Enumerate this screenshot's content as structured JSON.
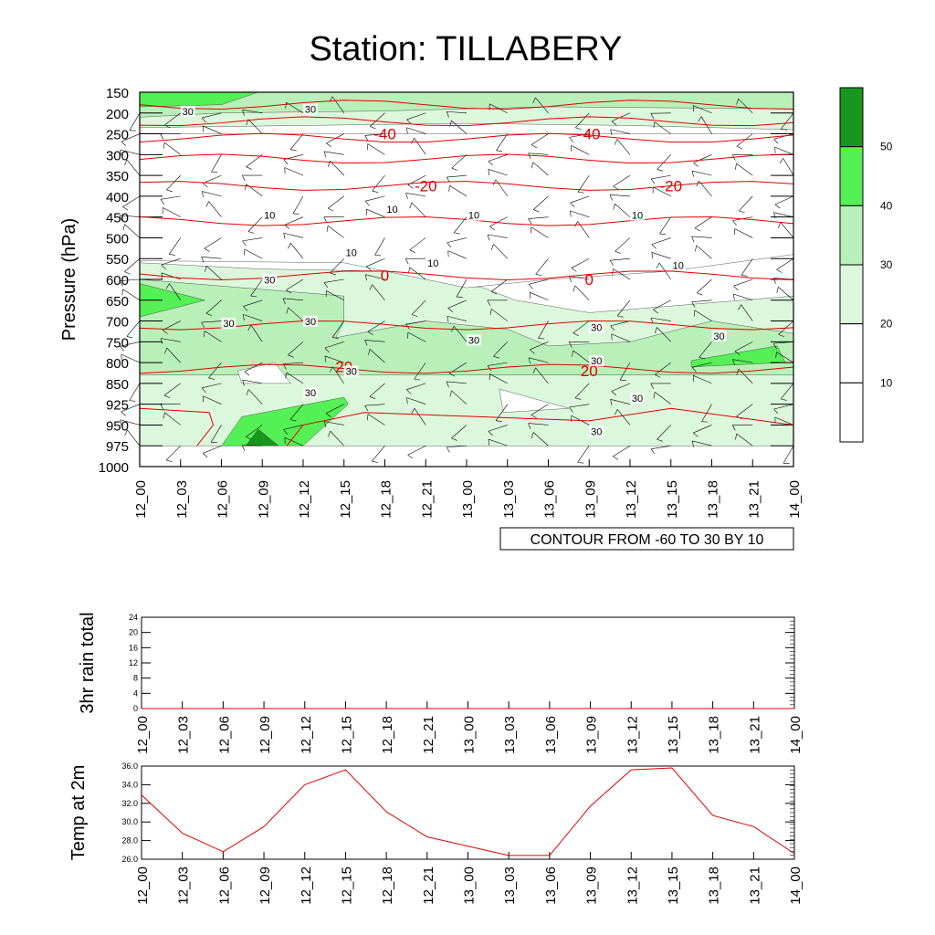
{
  "colors": {
    "axis": "#000000",
    "temp_line": "#e00000",
    "rh_levels": [
      "#ffffff",
      "#ffffff",
      "#dcf8dc",
      "#b9f0b9",
      "#55f055",
      "#19961e"
    ],
    "contour": "#000000",
    "barb": "#000000"
  },
  "chart_data": [
    {
      "type": "heatmap",
      "title": "Station: TILLABERY",
      "ylabel": "Pressure (hPa)",
      "xlabel": "",
      "time_ticks": [
        "12_00",
        "12_03",
        "12_06",
        "12_09",
        "12_12",
        "12_15",
        "12_18",
        "12_21",
        "13_00",
        "13_03",
        "13_06",
        "13_09",
        "13_12",
        "13_15",
        "13_18",
        "13_21",
        "14_00"
      ],
      "pressure_ticks": [
        "150",
        "200",
        "250",
        "300",
        "350",
        "400",
        "450",
        "500",
        "550",
        "600",
        "650",
        "700",
        "750",
        "800",
        "850",
        "925",
        "950",
        "975",
        "1000"
      ],
      "info_label": "CONTOUR FROM -60 TO 30 BY 10",
      "colorbar": {
        "levels": [
          "10",
          "20",
          "30",
          "40",
          "50"
        ],
        "boundaries": [
          0,
          10,
          20,
          30,
          40,
          50,
          60
        ]
      },
      "temperature_contour_labels": [
        {
          "text": "-40",
          "time": "12_18",
          "pressure": 250
        },
        {
          "text": "-40",
          "time": "13_09",
          "pressure": 250
        },
        {
          "text": "-20",
          "time": "12_21",
          "pressure": 375
        },
        {
          "text": "-20",
          "time": "13_15",
          "pressure": 375
        },
        {
          "text": "0",
          "time": "12_18",
          "pressure": 590
        },
        {
          "text": "0",
          "time": "13_09",
          "pressure": 600
        },
        {
          "text": "20",
          "time": "12_15",
          "pressure": 810
        },
        {
          "text": "20",
          "time": "13_09",
          "pressure": 820
        }
      ],
      "rh_contour_labels": [
        {
          "text": "30",
          "time": "12_03",
          "pressure": 200
        },
        {
          "text": "30",
          "time": "12_12",
          "pressure": 195
        },
        {
          "text": "10",
          "time": "12_09",
          "pressure": 450
        },
        {
          "text": "10",
          "time": "12_18",
          "pressure": 435
        },
        {
          "text": "10",
          "time": "13_00",
          "pressure": 450
        },
        {
          "text": "10",
          "time": "13_12",
          "pressure": 450
        },
        {
          "text": "10",
          "time": "12_15",
          "pressure": 540
        },
        {
          "text": "10",
          "time": "12_21",
          "pressure": 565
        },
        {
          "text": "10",
          "time": "13_15",
          "pressure": 570
        },
        {
          "text": "30",
          "time": "12_09",
          "pressure": 605
        },
        {
          "text": "30",
          "time": "12_06",
          "pressure": 710
        },
        {
          "text": "30",
          "time": "12_12",
          "pressure": 705
        },
        {
          "text": "30",
          "time": "13_09",
          "pressure": 720
        },
        {
          "text": "30",
          "time": "13_18",
          "pressure": 740
        },
        {
          "text": "30",
          "time": "13_00",
          "pressure": 750
        },
        {
          "text": "30",
          "time": "12_15",
          "pressure": 825
        },
        {
          "text": "30",
          "time": "13_09",
          "pressure": 800
        },
        {
          "text": "30",
          "time": "12_12",
          "pressure": 890
        },
        {
          "text": "30",
          "time": "13_12",
          "pressure": 910
        },
        {
          "text": "30",
          "time": "13_09",
          "pressure": 960
        }
      ]
    },
    {
      "type": "line",
      "ylabel": "3hr rain total",
      "x": [
        "12_00",
        "12_03",
        "12_06",
        "12_09",
        "12_12",
        "12_15",
        "12_18",
        "12_21",
        "13_00",
        "13_03",
        "13_06",
        "13_09",
        "13_12",
        "13_15",
        "13_18",
        "13_21",
        "14_00"
      ],
      "y_ticks": [
        "0",
        "4",
        "8",
        "12",
        "16",
        "20",
        "24"
      ],
      "ylim": [
        0,
        24
      ],
      "values": [
        0,
        0,
        0,
        0,
        0,
        0,
        0,
        0,
        0,
        0,
        0,
        0,
        0,
        0,
        0,
        0,
        0
      ]
    },
    {
      "type": "line",
      "ylabel": "Temp at 2m",
      "x": [
        "12_00",
        "12_03",
        "12_06",
        "12_09",
        "12_12",
        "12_15",
        "12_18",
        "12_21",
        "13_00",
        "13_03",
        "13_06",
        "13_09",
        "13_12",
        "13_15",
        "13_18",
        "13_21",
        "14_00"
      ],
      "y_ticks": [
        "26.0",
        "28.0",
        "30.0",
        "32.0",
        "34.0",
        "36.0"
      ],
      "ylim": [
        26,
        36
      ],
      "values": [
        32.9,
        28.8,
        26.8,
        29.5,
        34.0,
        35.6,
        31.1,
        28.4,
        27.4,
        26.4,
        26.4,
        31.7,
        35.6,
        35.8,
        30.7,
        29.5,
        26.6
      ]
    }
  ]
}
